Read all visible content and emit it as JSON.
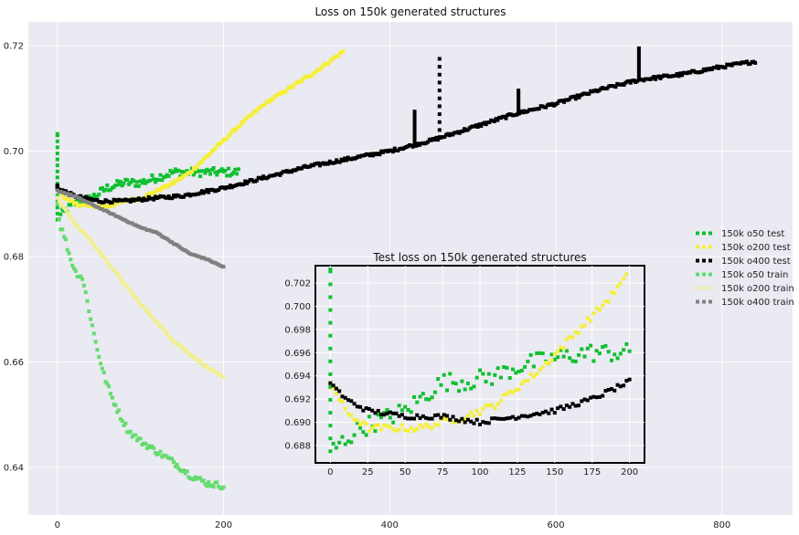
{
  "chart_data": [
    {
      "type": "scatter",
      "title": "Loss on 150k generated structures",
      "xlabel": "",
      "ylabel": "",
      "xlim": [
        -35,
        885
      ],
      "ylim": [
        0.631,
        0.7245
      ],
      "xticks": [
        0,
        200,
        400,
        600,
        800
      ],
      "yticks": [
        0.64,
        0.66,
        0.68,
        0.7,
        0.72
      ],
      "ytick_labels": [
        "0.64",
        "0.66",
        "0.68",
        "0.70",
        "0.72"
      ],
      "grid": true,
      "legend": "right",
      "series": [
        {
          "name": "150k o50 test",
          "color": "#10c030",
          "anchors": [
            [
              0,
              0.703
            ],
            [
              0,
              0.687
            ],
            [
              5,
              0.688
            ],
            [
              20,
              0.69
            ],
            [
              40,
              0.691
            ],
            [
              60,
              0.693
            ],
            [
              80,
              0.694
            ],
            [
              100,
              0.694
            ],
            [
              120,
              0.695
            ],
            [
              140,
              0.696
            ],
            [
              160,
              0.696
            ],
            [
              180,
              0.696
            ],
            [
              200,
              0.696
            ]
          ],
          "x_range": [
            0,
            218
          ],
          "noise": 0.0008
        },
        {
          "name": "150k o200 test",
          "color": "#f5ef3a",
          "anchors": [
            [
              0,
              0.693
            ],
            [
              10,
              0.691
            ],
            [
              20,
              0.69
            ],
            [
              40,
              0.6895
            ],
            [
              60,
              0.6895
            ],
            [
              80,
              0.6905
            ],
            [
              100,
              0.691
            ],
            [
              120,
              0.6925
            ],
            [
              140,
              0.694
            ],
            [
              160,
              0.696
            ],
            [
              180,
              0.699
            ],
            [
              200,
              0.702
            ],
            [
              220,
              0.705
            ],
            [
              250,
              0.709
            ],
            [
              280,
              0.712
            ],
            [
              310,
              0.715
            ],
            [
              345,
              0.719
            ]
          ],
          "x_range": [
            0,
            345
          ],
          "noise": 0.0003
        },
        {
          "name": "150k o400 test",
          "color": "#000000",
          "anchors": [
            [
              0,
              0.693
            ],
            [
              20,
              0.6915
            ],
            [
              50,
              0.6905
            ],
            [
              80,
              0.6905
            ],
            [
              110,
              0.691
            ],
            [
              150,
              0.6915
            ],
            [
              200,
              0.693
            ],
            [
              250,
              0.695
            ],
            [
              300,
              0.697
            ],
            [
              350,
              0.6985
            ],
            [
              400,
              0.7
            ],
            [
              450,
              0.702
            ],
            [
              500,
              0.7045
            ],
            [
              550,
              0.707
            ],
            [
              600,
              0.709
            ],
            [
              650,
              0.7115
            ],
            [
              700,
              0.7135
            ],
            [
              750,
              0.7145
            ],
            [
              800,
              0.716
            ],
            [
              840,
              0.717
            ]
          ],
          "x_range": [
            0,
            840
          ],
          "noise": 0.0003,
          "spikes": [
            [
              0,
              0.6935
            ],
            [
              430,
              0.7075
            ],
            [
              460,
              0.7175
            ],
            [
              555,
              0.7115
            ],
            [
              700,
              0.7195
            ]
          ]
        },
        {
          "name": "150k o50 train",
          "color": "#63dc6e",
          "anchors": [
            [
              0,
              0.69
            ],
            [
              3,
              0.686
            ],
            [
              8,
              0.684
            ],
            [
              15,
              0.68
            ],
            [
              22,
              0.677
            ],
            [
              30,
              0.676
            ],
            [
              38,
              0.67
            ],
            [
              45,
              0.6645
            ],
            [
              55,
              0.658
            ],
            [
              65,
              0.6535
            ],
            [
              75,
              0.65
            ],
            [
              85,
              0.647
            ],
            [
              100,
              0.645
            ],
            [
              120,
              0.643
            ],
            [
              140,
              0.641
            ],
            [
              160,
              0.6385
            ],
            [
              180,
              0.637
            ],
            [
              200,
              0.6365
            ]
          ],
          "x_range": [
            0,
            200
          ],
          "noise": 0.0006
        },
        {
          "name": "150k o200 train",
          "color": "#f2ef90",
          "anchors": [
            [
              0,
              0.691
            ],
            [
              20,
              0.6865
            ],
            [
              40,
              0.683
            ],
            [
              60,
              0.679
            ],
            [
              80,
              0.675
            ],
            [
              100,
              0.671
            ],
            [
              120,
              0.6675
            ],
            [
              140,
              0.664
            ],
            [
              160,
              0.6615
            ],
            [
              180,
              0.659
            ],
            [
              200,
              0.657
            ]
          ],
          "x_range": [
            0,
            200
          ],
          "noise": 0.0002
        },
        {
          "name": "150k o400 train",
          "color": "#808080",
          "anchors": [
            [
              0,
              0.6925
            ],
            [
              20,
              0.6915
            ],
            [
              40,
              0.69
            ],
            [
              60,
              0.6885
            ],
            [
              80,
              0.687
            ],
            [
              100,
              0.6855
            ],
            [
              120,
              0.6845
            ],
            [
              140,
              0.6825
            ],
            [
              160,
              0.6805
            ],
            [
              180,
              0.6795
            ],
            [
              200,
              0.678
            ]
          ],
          "x_range": [
            0,
            200
          ],
          "noise": 0.0001
        }
      ]
    },
    {
      "type": "scatter",
      "title": "Test loss on 150k generated structures",
      "xlabel": "",
      "ylabel": "",
      "xlim": [
        -10,
        210
      ],
      "ylim": [
        0.6865,
        0.7035
      ],
      "xticks": [
        0,
        25,
        50,
        75,
        100,
        125,
        150,
        175,
        200
      ],
      "yticks": [
        0.688,
        0.69,
        0.692,
        0.694,
        0.696,
        0.698,
        0.7,
        0.702
      ],
      "ytick_labels": [
        "0.688",
        "0.690",
        "0.692",
        "0.694",
        "0.696",
        "0.698",
        "0.700",
        "0.702"
      ],
      "grid": true,
      "series": [
        {
          "name": "150k o50 test",
          "color": "#10c030",
          "anchors": [
            [
              0,
              0.703
            ],
            [
              0,
              0.6875
            ],
            [
              10,
              0.6885
            ],
            [
              20,
              0.6895
            ],
            [
              30,
              0.69
            ],
            [
              40,
              0.6905
            ],
            [
              50,
              0.691
            ],
            [
              60,
              0.692
            ],
            [
              75,
              0.6935
            ],
            [
              90,
              0.6935
            ],
            [
              110,
              0.694
            ],
            [
              130,
              0.695
            ],
            [
              150,
              0.6955
            ],
            [
              170,
              0.696
            ],
            [
              190,
              0.696
            ],
            [
              200,
              0.696
            ]
          ],
          "x_range": [
            0,
            200
          ],
          "noise": 0.0008
        },
        {
          "name": "150k o200 test",
          "color": "#f5ef3a",
          "anchors": [
            [
              0,
              0.6935
            ],
            [
              10,
              0.691
            ],
            [
              25,
              0.6895
            ],
            [
              40,
              0.6895
            ],
            [
              60,
              0.6895
            ],
            [
              75,
              0.69
            ],
            [
              90,
              0.6905
            ],
            [
              110,
              0.6915
            ],
            [
              125,
              0.693
            ],
            [
              140,
              0.6945
            ],
            [
              155,
              0.6965
            ],
            [
              170,
              0.6985
            ],
            [
              185,
              0.7005
            ],
            [
              198,
              0.7025
            ]
          ],
          "x_range": [
            0,
            198
          ],
          "noise": 0.0003
        },
        {
          "name": "150k o400 test",
          "color": "#000000",
          "anchors": [
            [
              0,
              0.6935
            ],
            [
              10,
              0.692
            ],
            [
              25,
              0.691
            ],
            [
              50,
              0.6905
            ],
            [
              75,
              0.6905
            ],
            [
              100,
              0.69
            ],
            [
              125,
              0.6905
            ],
            [
              150,
              0.691
            ],
            [
              175,
              0.692
            ],
            [
              200,
              0.6935
            ]
          ],
          "x_range": [
            0,
            200
          ],
          "noise": 0.0002
        }
      ]
    }
  ]
}
